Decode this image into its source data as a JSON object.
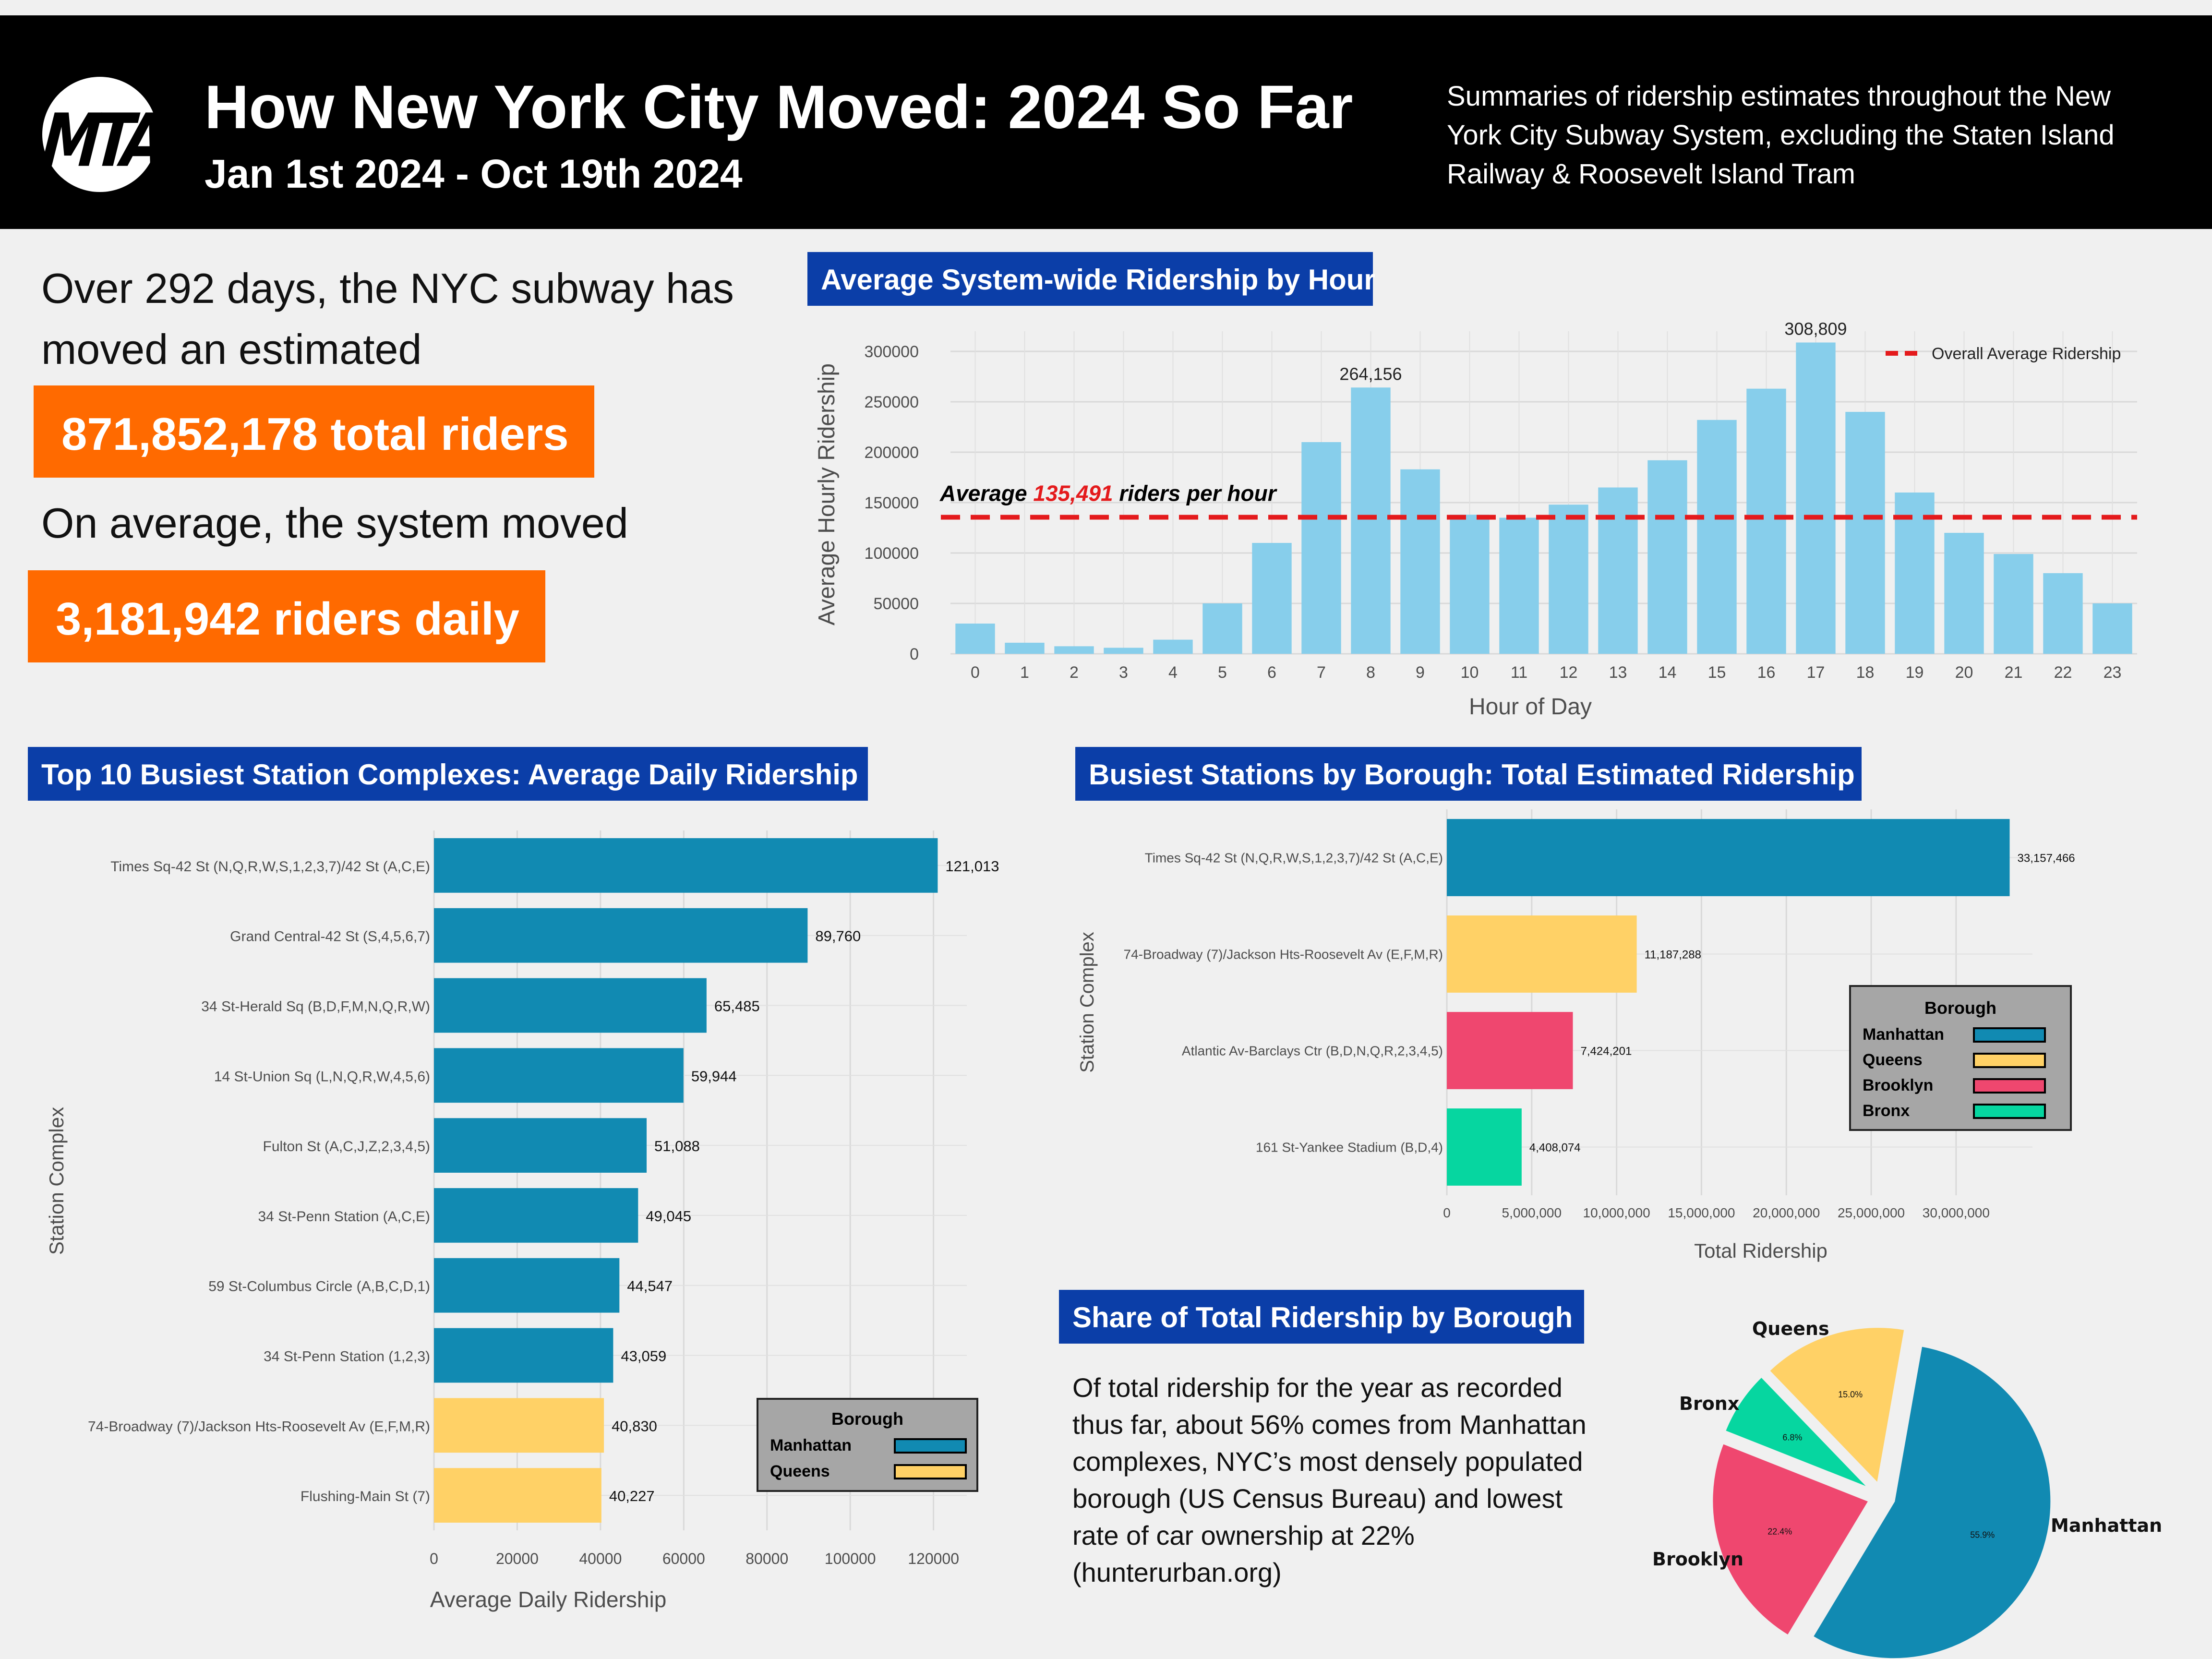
{
  "header": {
    "logo_text": "MTA",
    "title": "How New York City Moved: 2024 So Far",
    "subtitle": "Jan 1st 2024 - Oct 19th 2024",
    "description": "Summaries of ridership estimates throughout the New York City Subway System, excluding the Staten Island Railway & Roosevelt Island Tram"
  },
  "summary": {
    "line1": "Over 292 days, the NYC subway has",
    "line2": "moved an estimated",
    "total_box": "871,852,178 total riders",
    "line3": "On average, the system moved",
    "daily_box": "3,181,942 riders daily"
  },
  "sections": {
    "hourly": "Average System-wide Ridership by Hour",
    "top10": "Top 10 Busiest Station Complexes: Average Daily Ridership",
    "borough_stations": "Busiest Stations by Borough: Total Estimated Ridership",
    "share": "Share of Total Ridership by Borough"
  },
  "share_text": "Of total ridership for the year as recorded thus far, about 56% comes from Manhattan complexes, NYC’s most densely populated borough (US Census Bureau) and lowest rate of car ownership at 22% (hunterurban.org)",
  "colors": {
    "header_bg": "#000000",
    "accent_orange": "#ff6a00",
    "section_blue": "#0b3ea8",
    "hourly_bar": "#87ceeb",
    "avg_line": "#e41a1c",
    "manhattan": "#118ab2",
    "queens": "#ffd166",
    "brooklyn": "#ef476f",
    "bronx": "#06d6a0"
  },
  "chart_data": [
    {
      "id": "hourly",
      "type": "bar",
      "xlabel": "Hour of Day",
      "ylabel": "Average Hourly Ridership",
      "x_ticks": [
        "0",
        "1",
        "2",
        "3",
        "4",
        "5",
        "6",
        "7",
        "8",
        "9",
        "10",
        "11",
        "12",
        "13",
        "14",
        "15",
        "16",
        "17",
        "18",
        "19",
        "20",
        "21",
        "22",
        "23"
      ],
      "y_ticks": [
        "0",
        "50000",
        "100000",
        "150000",
        "200000",
        "250000",
        "300000"
      ],
      "ylim": [
        0,
        320000
      ],
      "values": [
        30000,
        11000,
        7500,
        6000,
        14000,
        50000,
        110000,
        210000,
        264156,
        183000,
        138000,
        135000,
        148000,
        165000,
        192000,
        232000,
        263000,
        308809,
        240000,
        160000,
        120000,
        99000,
        80000,
        50000
      ],
      "bar_labels": [
        {
          "index": 8,
          "text": "264,156"
        },
        {
          "index": 17,
          "text": "308,809"
        }
      ],
      "average_line": {
        "value": 135491,
        "label_prefix": "Average ",
        "label_value": "135,491",
        "label_suffix": " riders per hour"
      },
      "legend": {
        "label": "Overall Average Ridership",
        "position": "top-right"
      },
      "grid": true
    },
    {
      "id": "top10",
      "type": "bar",
      "orientation": "horizontal",
      "xlabel": "Average Daily Ridership",
      "ylabel": "Station Complex",
      "x_ticks": [
        "0",
        "20000",
        "40000",
        "60000",
        "80000",
        "100000",
        "120000"
      ],
      "xlim": [
        0,
        128000
      ],
      "categories": [
        "Times Sq-42 St (N,Q,R,W,S,1,2,3,7)/42 St (A,C,E)",
        "Grand Central-42 St (S,4,5,6,7)",
        "34 St-Herald Sq (B,D,F,M,N,Q,R,W)",
        "14 St-Union Sq (L,N,Q,R,W,4,5,6)",
        "Fulton St (A,C,J,Z,2,3,4,5)",
        "34 St-Penn Station (A,C,E)",
        "59 St-Columbus Circle (A,B,C,D,1)",
        "34 St-Penn Station (1,2,3)",
        "74-Broadway (7)/Jackson Hts-Roosevelt Av (E,F,M,R)",
        "Flushing-Main St (7)"
      ],
      "values": [
        121013,
        89760,
        65485,
        59944,
        51088,
        49045,
        44547,
        43059,
        40830,
        40227
      ],
      "value_labels": [
        "121,013",
        "89,760",
        "65,485",
        "59,944",
        "51,088",
        "49,045",
        "44,547",
        "43,059",
        "40,830",
        "40,227"
      ],
      "boroughs": [
        "Manhattan",
        "Manhattan",
        "Manhattan",
        "Manhattan",
        "Manhattan",
        "Manhattan",
        "Manhattan",
        "Manhattan",
        "Queens",
        "Queens"
      ],
      "legend": {
        "title": "Borough",
        "entries": [
          "Manhattan",
          "Queens"
        ],
        "position": "bottom-right"
      },
      "grid": true
    },
    {
      "id": "borough_stations",
      "type": "bar",
      "orientation": "horizontal",
      "xlabel": "Total Ridership",
      "ylabel": "Station Complex",
      "x_ticks": [
        "0",
        "5,000,000",
        "10,000,000",
        "15,000,000",
        "20,000,000",
        "25,000,000",
        "30,000,000"
      ],
      "xlim": [
        0,
        34500000
      ],
      "categories": [
        "Times Sq-42 St (N,Q,R,W,S,1,2,3,7)/42 St (A,C,E)",
        "74-Broadway (7)/Jackson Hts-Roosevelt Av (E,F,M,R)",
        "Atlantic Av-Barclays Ctr (B,D,N,Q,R,2,3,4,5)",
        "161 St-Yankee Stadium (B,D,4)"
      ],
      "values": [
        33157466,
        11187288,
        7424201,
        4408074
      ],
      "value_labels": [
        "33,157,466",
        "11,187,288",
        "7,424,201",
        "4,408,074"
      ],
      "boroughs": [
        "Manhattan",
        "Queens",
        "Brooklyn",
        "Bronx"
      ],
      "legend": {
        "title": "Borough",
        "entries": [
          "Manhattan",
          "Queens",
          "Brooklyn",
          "Bronx"
        ],
        "position": "right"
      },
      "grid": true
    },
    {
      "id": "share",
      "type": "pie",
      "exploded": true,
      "slices": [
        {
          "label": "Manhattan",
          "value": 55.9,
          "pct_label": "55.9%"
        },
        {
          "label": "Brooklyn",
          "value": 22.4,
          "pct_label": "22.4%"
        },
        {
          "label": "Bronx",
          "value": 6.8,
          "pct_label": "6.8%"
        },
        {
          "label": "Queens",
          "value": 15.0,
          "pct_label": "15.0%"
        }
      ]
    }
  ]
}
